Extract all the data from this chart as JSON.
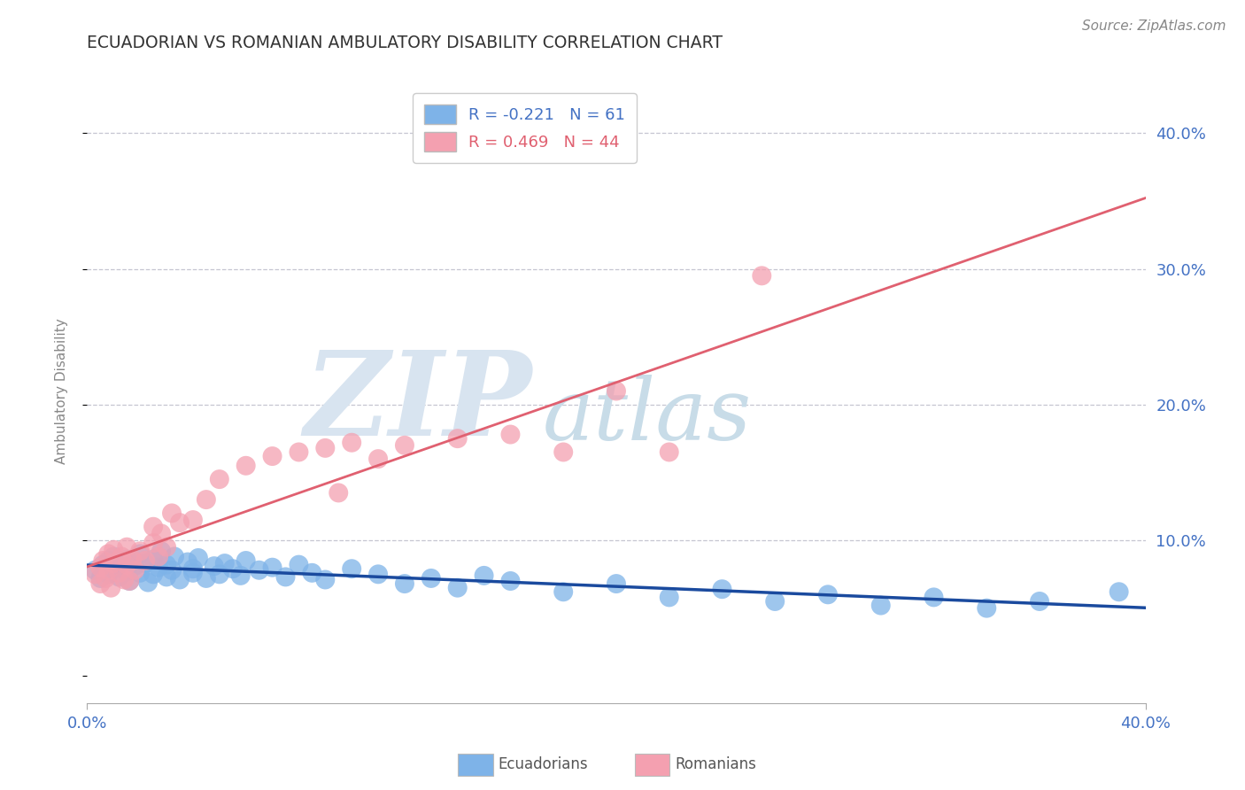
{
  "title": "ECUADORIAN VS ROMANIAN AMBULATORY DISABILITY CORRELATION CHART",
  "source": "Source: ZipAtlas.com",
  "blue_R": -0.221,
  "blue_N": 61,
  "pink_R": 0.469,
  "pink_N": 44,
  "blue_color": "#7eb3e8",
  "pink_color": "#f4a0b0",
  "blue_line_color": "#1a4a9e",
  "pink_line_color": "#e06070",
  "xmin": 0.0,
  "xmax": 0.4,
  "ymin": -0.02,
  "ymax": 0.44,
  "ylabel": "Ambulatory Disability",
  "ecuadorians_x": [
    0.003,
    0.005,
    0.006,
    0.008,
    0.008,
    0.01,
    0.01,
    0.012,
    0.013,
    0.015,
    0.015,
    0.016,
    0.018,
    0.02,
    0.02,
    0.022,
    0.023,
    0.025,
    0.025,
    0.027,
    0.028,
    0.03,
    0.03,
    0.032,
    0.033,
    0.035,
    0.038,
    0.04,
    0.04,
    0.042,
    0.045,
    0.048,
    0.05,
    0.052,
    0.055,
    0.058,
    0.06,
    0.065,
    0.07,
    0.075,
    0.08,
    0.085,
    0.09,
    0.1,
    0.11,
    0.12,
    0.13,
    0.14,
    0.15,
    0.16,
    0.18,
    0.2,
    0.22,
    0.24,
    0.26,
    0.28,
    0.3,
    0.32,
    0.34,
    0.36,
    0.39
  ],
  "ecuadorians_y": [
    0.078,
    0.072,
    0.082,
    0.075,
    0.085,
    0.079,
    0.088,
    0.073,
    0.083,
    0.077,
    0.086,
    0.07,
    0.081,
    0.076,
    0.09,
    0.083,
    0.069,
    0.086,
    0.075,
    0.08,
    0.092,
    0.073,
    0.082,
    0.078,
    0.088,
    0.071,
    0.084,
    0.076,
    0.079,
    0.087,
    0.072,
    0.081,
    0.075,
    0.083,
    0.079,
    0.074,
    0.085,
    0.078,
    0.08,
    0.073,
    0.082,
    0.076,
    0.071,
    0.079,
    0.075,
    0.068,
    0.072,
    0.065,
    0.074,
    0.07,
    0.062,
    0.068,
    0.058,
    0.064,
    0.055,
    0.06,
    0.052,
    0.058,
    0.05,
    0.055,
    0.062
  ],
  "romanians_x": [
    0.003,
    0.005,
    0.005,
    0.006,
    0.007,
    0.008,
    0.008,
    0.009,
    0.01,
    0.01,
    0.012,
    0.013,
    0.014,
    0.015,
    0.015,
    0.016,
    0.017,
    0.018,
    0.02,
    0.022,
    0.025,
    0.025,
    0.027,
    0.028,
    0.03,
    0.032,
    0.035,
    0.04,
    0.045,
    0.05,
    0.06,
    0.07,
    0.08,
    0.09,
    0.1,
    0.12,
    0.14,
    0.16,
    0.18,
    0.2,
    0.095,
    0.11,
    0.22,
    0.255
  ],
  "romanians_y": [
    0.075,
    0.08,
    0.068,
    0.085,
    0.072,
    0.078,
    0.09,
    0.065,
    0.083,
    0.093,
    0.076,
    0.088,
    0.071,
    0.082,
    0.095,
    0.07,
    0.086,
    0.078,
    0.092,
    0.085,
    0.098,
    0.11,
    0.088,
    0.105,
    0.095,
    0.12,
    0.113,
    0.115,
    0.13,
    0.145,
    0.155,
    0.162,
    0.165,
    0.168,
    0.172,
    0.17,
    0.175,
    0.178,
    0.165,
    0.21,
    0.135,
    0.16,
    0.165,
    0.295
  ]
}
